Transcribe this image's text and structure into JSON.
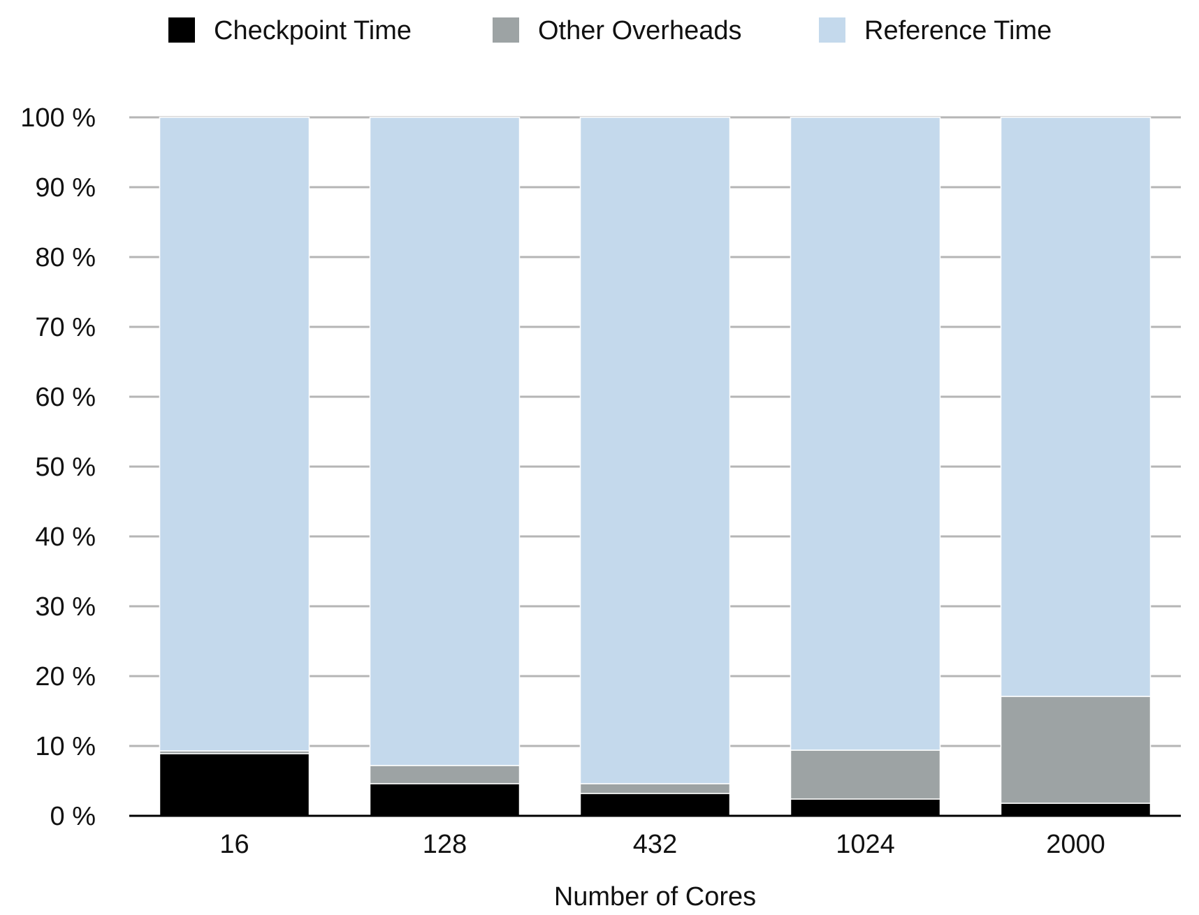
{
  "chart_data": {
    "type": "bar",
    "stacked": true,
    "categories": [
      "16",
      "128",
      "432",
      "1024",
      "2000"
    ],
    "series": [
      {
        "name": "Checkpoint Time",
        "color": "#000000",
        "values": [
          8.9,
          4.6,
          3.2,
          2.4,
          1.8
        ]
      },
      {
        "name": "Other Overheads",
        "color": "#9da3a4",
        "values": [
          0.4,
          2.6,
          1.4,
          7.0,
          15.3
        ]
      },
      {
        "name": "Reference Time",
        "color": "#c4d9ec",
        "values": [
          90.7,
          92.8,
          95.4,
          90.6,
          82.9
        ]
      }
    ],
    "xlabel": "Number of Cores",
    "ylabel": "",
    "ylim": [
      0,
      100
    ],
    "yticks": [
      0,
      10,
      20,
      30,
      40,
      50,
      60,
      70,
      80,
      90,
      100
    ],
    "ytick_labels": [
      "0 %",
      "10 %",
      "20 %",
      "30 %",
      "40 %",
      "50 %",
      "60 %",
      "70 %",
      "80 %",
      "90 %",
      "100 %"
    ],
    "grid": true,
    "legend_position": "top"
  }
}
